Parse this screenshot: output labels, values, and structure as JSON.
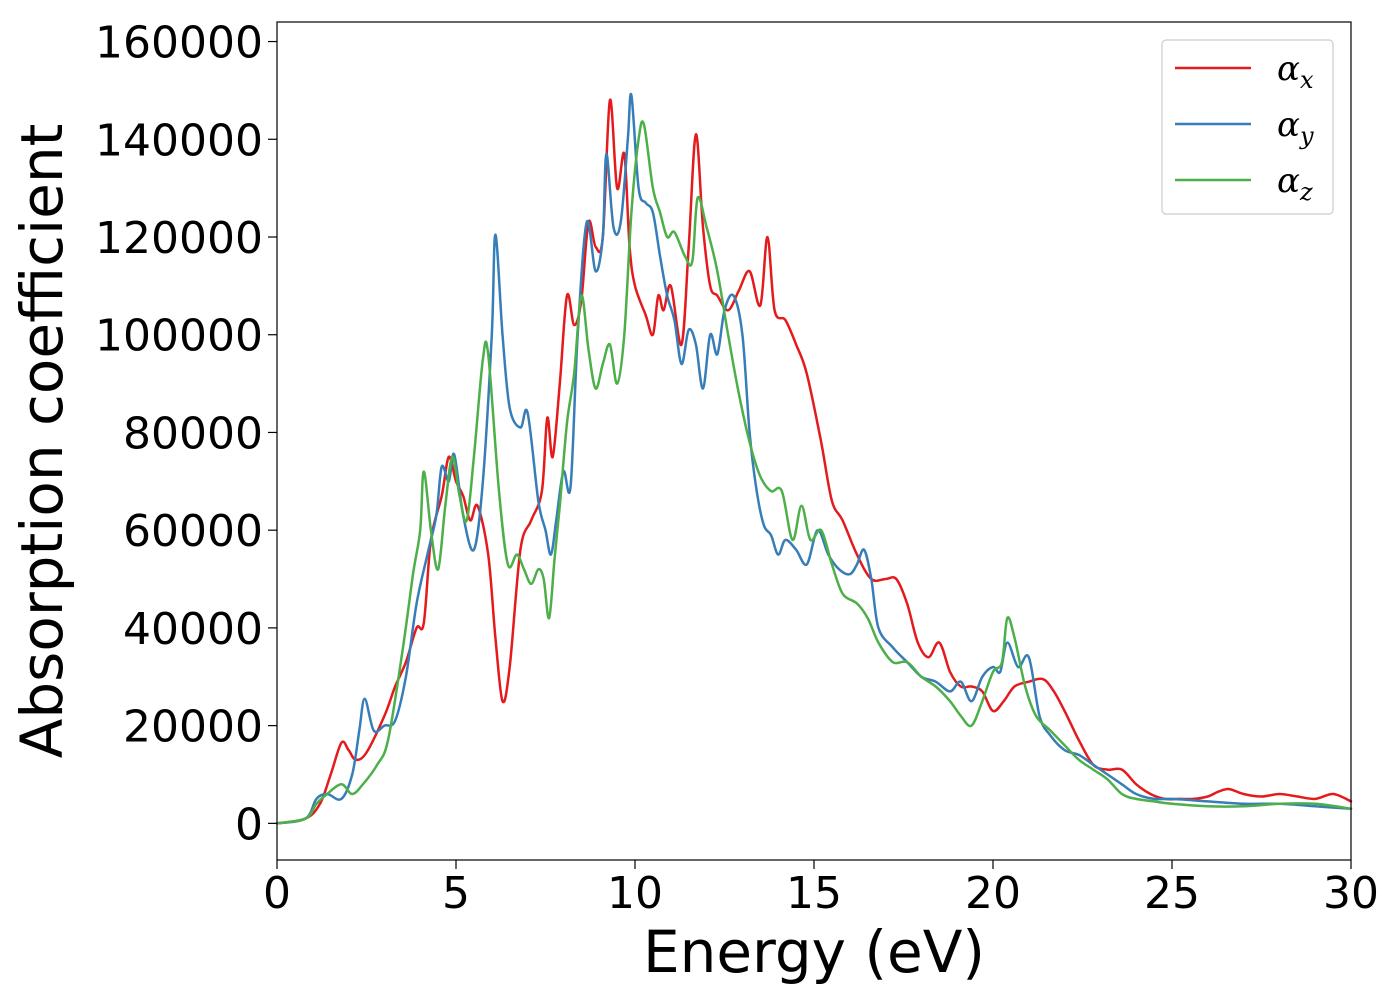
{
  "chart_data": {
    "type": "line",
    "xlabel": "Energy (eV)",
    "ylabel": "Absorption coefficient",
    "xlim": [
      0,
      30
    ],
    "ylim": [
      -7500,
      164000
    ],
    "xticks": [
      0,
      5,
      10,
      15,
      20,
      25,
      30
    ],
    "yticks": [
      0,
      20000,
      40000,
      60000,
      80000,
      100000,
      120000,
      140000,
      160000
    ],
    "grid": false,
    "legend_position": "top-right",
    "series": [
      {
        "name": "αx",
        "base": "α",
        "sub": "x",
        "color": "#e41a1c",
        "x": [
          0,
          0.8,
          1.2,
          1.5,
          1.8,
          2.0,
          2.2,
          2.5,
          3.0,
          3.3,
          3.6,
          3.9,
          4.1,
          4.3,
          4.6,
          4.8,
          5.0,
          5.2,
          5.4,
          5.6,
          5.9,
          6.1,
          6.3,
          6.5,
          6.8,
          7.1,
          7.4,
          7.55,
          7.7,
          7.9,
          8.1,
          8.3,
          8.5,
          8.7,
          8.9,
          9.1,
          9.3,
          9.5,
          9.7,
          9.85,
          10.0,
          10.3,
          10.5,
          10.65,
          10.8,
          11.0,
          11.3,
          11.5,
          11.7,
          11.9,
          12.1,
          12.3,
          12.6,
          12.9,
          13.2,
          13.5,
          13.7,
          13.9,
          14.2,
          14.5,
          14.8,
          15.2,
          15.5,
          15.8,
          16.2,
          16.6,
          17.0,
          17.3,
          17.6,
          17.9,
          18.2,
          18.5,
          18.8,
          19.1,
          19.4,
          19.7,
          20.0,
          20.3,
          20.6,
          21.0,
          21.4,
          21.7,
          22.0,
          22.4,
          22.8,
          23.2,
          23.6,
          24.0,
          24.4,
          24.8,
          25.2,
          25.6,
          26.0,
          26.3,
          26.6,
          27.0,
          27.5,
          28.0,
          28.5,
          29.0,
          29.5,
          30.0
        ],
        "y": [
          0,
          1000,
          4000,
          10000,
          16500,
          15000,
          13000,
          14500,
          22000,
          28000,
          33000,
          40000,
          41000,
          58000,
          67000,
          75000,
          70000,
          67000,
          62000,
          65000,
          55000,
          38000,
          25000,
          32000,
          56000,
          62000,
          68000,
          83000,
          75000,
          90000,
          108000,
          102000,
          107000,
          123000,
          118000,
          120000,
          148000,
          130000,
          137000,
          118000,
          110000,
          104000,
          100000,
          108000,
          105000,
          110000,
          98000,
          118000,
          141000,
          122000,
          110000,
          108000,
          105000,
          109000,
          113000,
          106000,
          120000,
          105000,
          103000,
          98000,
          92000,
          78000,
          66000,
          62000,
          55000,
          50000,
          50000,
          50000,
          45000,
          37000,
          34000,
          37000,
          31000,
          28000,
          28000,
          27000,
          23000,
          25000,
          28000,
          29000,
          29500,
          27000,
          23000,
          17000,
          12000,
          11000,
          11000,
          8000,
          6000,
          5000,
          5000,
          5000,
          5500,
          6500,
          7000,
          6000,
          5500,
          6000,
          5500,
          5000,
          6000,
          4500
        ]
      },
      {
        "name": "αy",
        "base": "α",
        "sub": "y",
        "color": "#377eb8",
        "x": [
          0,
          0.8,
          1.1,
          1.4,
          1.8,
          2.1,
          2.3,
          2.45,
          2.7,
          3.0,
          3.3,
          3.6,
          3.9,
          4.2,
          4.45,
          4.6,
          4.8,
          4.95,
          5.2,
          5.5,
          5.75,
          6.0,
          6.1,
          6.3,
          6.5,
          6.8,
          7.0,
          7.3,
          7.5,
          7.65,
          7.8,
          8.0,
          8.2,
          8.4,
          8.65,
          8.9,
          9.1,
          9.2,
          9.4,
          9.6,
          9.8,
          9.9,
          10.1,
          10.3,
          10.5,
          10.7,
          10.9,
          11.1,
          11.3,
          11.5,
          11.7,
          11.9,
          12.1,
          12.3,
          12.5,
          12.75,
          13.0,
          13.2,
          13.4,
          13.6,
          13.8,
          14.0,
          14.2,
          14.5,
          14.8,
          15.1,
          15.4,
          15.7,
          16.0,
          16.2,
          16.4,
          16.6,
          16.8,
          17.2,
          17.6,
          18.0,
          18.4,
          18.8,
          19.1,
          19.4,
          19.7,
          20.0,
          20.2,
          20.4,
          20.7,
          21.0,
          21.3,
          21.6,
          22.0,
          22.4,
          22.8,
          23.2,
          23.6,
          24.0,
          24.5,
          25.0,
          26.0,
          27.0,
          28.0,
          29.0,
          30.0
        ],
        "y": [
          0,
          1000,
          5000,
          6000,
          5000,
          10000,
          19000,
          25500,
          19000,
          20000,
          21000,
          30000,
          45000,
          55000,
          63000,
          73000,
          70000,
          75500,
          63000,
          56000,
          70000,
          100000,
          120500,
          100000,
          85000,
          81000,
          84000,
          66000,
          60000,
          55000,
          62000,
          72000,
          69000,
          100000,
          123000,
          113000,
          120000,
          137000,
          122000,
          123000,
          140000,
          149000,
          130000,
          127000,
          125000,
          116000,
          108000,
          103000,
          94000,
          101000,
          98000,
          89000,
          100000,
          96000,
          105000,
          108000,
          100000,
          80000,
          68000,
          61000,
          59000,
          55000,
          58000,
          56000,
          53000,
          60000,
          55000,
          52000,
          51000,
          53000,
          56000,
          50000,
          40000,
          36000,
          33000,
          30000,
          29000,
          27000,
          29000,
          25000,
          30000,
          32000,
          31000,
          37000,
          32000,
          34000,
          22000,
          18000,
          15000,
          14000,
          12000,
          10000,
          8000,
          6000,
          5000,
          5000,
          4500,
          4000,
          4000,
          3500,
          3000
        ]
      },
      {
        "name": "αz",
        "base": "α",
        "sub": "z",
        "color": "#4daf4a",
        "x": [
          0,
          0.8,
          1.1,
          1.4,
          1.8,
          2.1,
          2.4,
          2.8,
          3.1,
          3.5,
          3.8,
          4.0,
          4.1,
          4.3,
          4.5,
          4.7,
          4.9,
          5.1,
          5.3,
          5.5,
          5.75,
          5.9,
          6.2,
          6.45,
          6.7,
          6.9,
          7.1,
          7.3,
          7.45,
          7.6,
          7.75,
          7.9,
          8.1,
          8.3,
          8.5,
          8.7,
          8.9,
          9.1,
          9.3,
          9.5,
          9.7,
          9.9,
          10.1,
          10.25,
          10.5,
          10.7,
          10.9,
          11.1,
          11.4,
          11.6,
          11.75,
          12.0,
          12.3,
          12.6,
          12.9,
          13.2,
          13.5,
          13.8,
          14.1,
          14.4,
          14.65,
          14.9,
          15.2,
          15.5,
          15.8,
          16.2,
          16.5,
          16.8,
          17.2,
          17.6,
          18.0,
          18.4,
          18.8,
          19.1,
          19.4,
          19.7,
          20.0,
          20.25,
          20.4,
          20.6,
          20.9,
          21.2,
          21.6,
          22.0,
          22.4,
          22.8,
          23.2,
          23.6,
          24.0,
          24.5,
          25.0,
          26.0,
          27.0,
          28.0,
          29.0,
          30.0
        ],
        "y": [
          0,
          1000,
          4000,
          6000,
          8000,
          6000,
          8000,
          12000,
          17000,
          35000,
          51000,
          60000,
          72000,
          60000,
          52000,
          65000,
          75000,
          67000,
          62000,
          75000,
          95000,
          96000,
          68000,
          53000,
          55000,
          52000,
          49000,
          52000,
          50000,
          42000,
          54000,
          65000,
          82000,
          92000,
          108000,
          97000,
          89000,
          94000,
          98000,
          90000,
          100000,
          125000,
          140000,
          143000,
          130000,
          125000,
          120000,
          121000,
          116000,
          115000,
          128000,
          122000,
          113000,
          100000,
          88000,
          78000,
          71000,
          68000,
          68000,
          58000,
          65000,
          58000,
          60000,
          53000,
          47000,
          45000,
          42000,
          37000,
          33000,
          33000,
          30000,
          28000,
          25000,
          22000,
          20000,
          25000,
          31000,
          33000,
          42000,
          38000,
          28000,
          22000,
          19000,
          16000,
          13000,
          11000,
          9000,
          6000,
          5000,
          4500,
          4000,
          3500,
          3500,
          4000,
          4000,
          3000
        ]
      }
    ]
  }
}
